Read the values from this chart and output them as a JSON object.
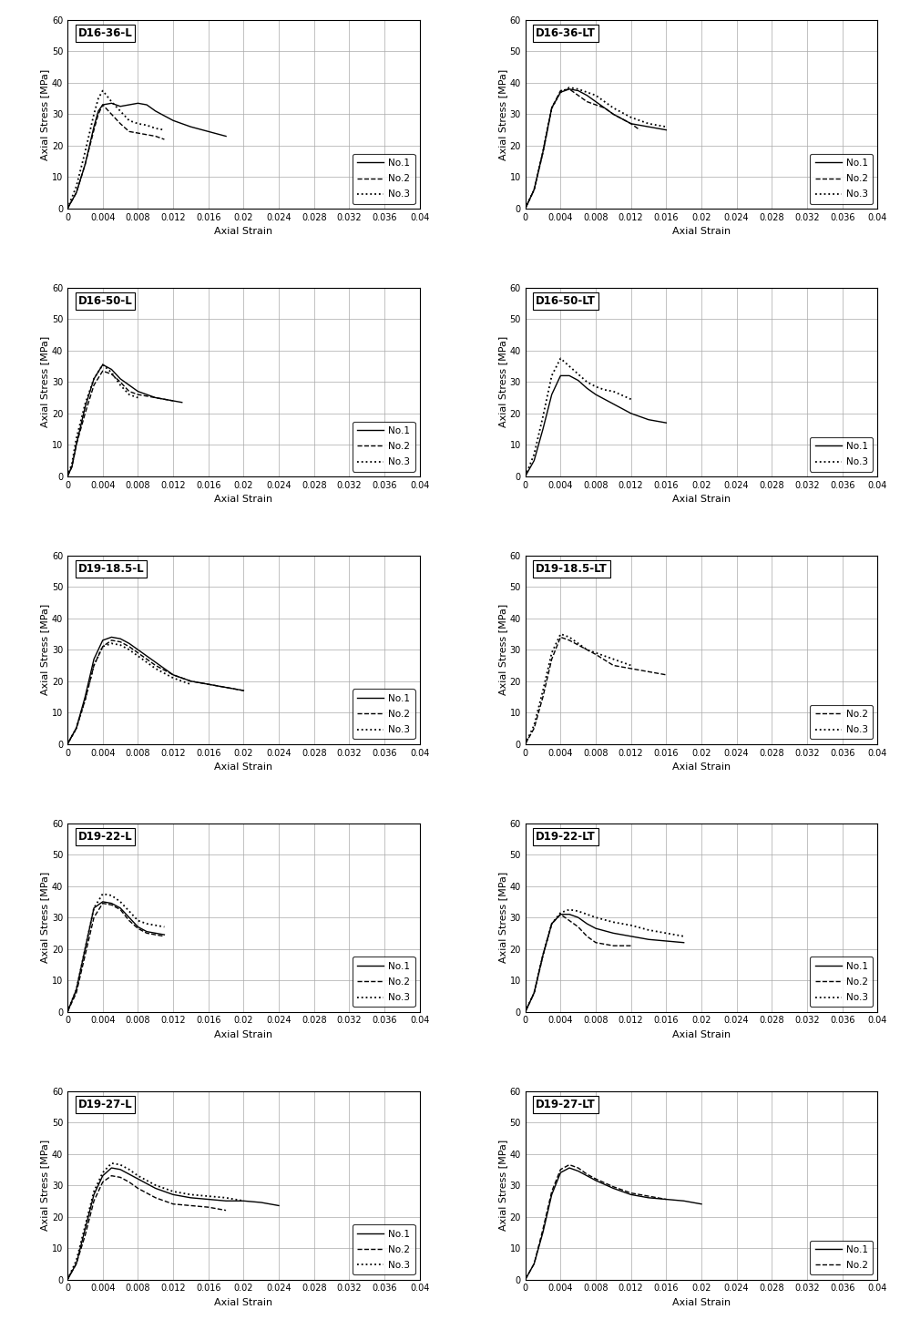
{
  "panels": [
    {
      "title": "D16-36-L",
      "series": [
        {
          "label": "No.1",
          "style": "solid",
          "x": [
            0,
            0.001,
            0.002,
            0.003,
            0.0035,
            0.004,
            0.005,
            0.006,
            0.007,
            0.008,
            0.009,
            0.01,
            0.012,
            0.014,
            0.016,
            0.018
          ],
          "y": [
            0,
            5,
            14,
            26,
            31,
            33,
            33.5,
            32.5,
            33,
            33.5,
            33,
            31,
            28,
            26,
            24.5,
            23
          ]
        },
        {
          "label": "No.2",
          "style": "dashed",
          "x": [
            0,
            0.001,
            0.002,
            0.003,
            0.0035,
            0.004,
            0.005,
            0.006,
            0.007,
            0.008,
            0.009,
            0.01,
            0.011
          ],
          "y": [
            0,
            5,
            14,
            25,
            30,
            33,
            30,
            27,
            24.5,
            24,
            23.5,
            23,
            22
          ]
        },
        {
          "label": "No.3",
          "style": "dotted",
          "x": [
            0,
            0.001,
            0.002,
            0.003,
            0.0035,
            0.004,
            0.005,
            0.006,
            0.007,
            0.008,
            0.009,
            0.01,
            0.011
          ],
          "y": [
            0,
            7,
            18,
            30,
            35,
            37.5,
            34,
            31,
            28,
            27,
            26.5,
            25.5,
            25
          ]
        }
      ],
      "legend_labels": [
        "No.1",
        "No.2",
        "No.3"
      ]
    },
    {
      "title": "D16-36-LT",
      "series": [
        {
          "label": "No.1",
          "style": "solid",
          "x": [
            0,
            0.001,
            0.002,
            0.003,
            0.004,
            0.005,
            0.006,
            0.007,
            0.008,
            0.009,
            0.01,
            0.012,
            0.014,
            0.016
          ],
          "y": [
            0,
            6,
            18,
            32,
            37,
            38,
            37.5,
            36,
            34,
            32,
            30,
            27,
            26,
            25
          ]
        },
        {
          "label": "No.2",
          "style": "dashed",
          "x": [
            0,
            0.001,
            0.002,
            0.003,
            0.004,
            0.005,
            0.006,
            0.007,
            0.008,
            0.009,
            0.01,
            0.012,
            0.013
          ],
          "y": [
            0,
            6,
            18,
            32,
            37.5,
            38,
            36,
            34,
            33,
            32,
            30,
            27,
            25
          ]
        },
        {
          "label": "No.3",
          "style": "dotted",
          "x": [
            0,
            0.001,
            0.002,
            0.003,
            0.004,
            0.005,
            0.006,
            0.007,
            0.008,
            0.009,
            0.01,
            0.012,
            0.014,
            0.016
          ],
          "y": [
            0,
            6,
            18,
            32,
            37,
            38.5,
            38,
            37,
            36,
            34,
            32,
            29,
            27,
            26
          ]
        }
      ],
      "legend_labels": [
        "No.1",
        "No.2",
        "No.3"
      ]
    },
    {
      "title": "D16-50-L",
      "series": [
        {
          "label": "No.1",
          "style": "solid",
          "x": [
            0,
            0.0005,
            0.001,
            0.002,
            0.003,
            0.004,
            0.005,
            0.006,
            0.007,
            0.008,
            0.01,
            0.012,
            0.013
          ],
          "y": [
            0,
            3,
            10,
            22,
            31,
            35.5,
            34,
            31,
            29,
            27,
            25,
            24,
            23.5
          ]
        },
        {
          "label": "No.2",
          "style": "dashed",
          "x": [
            0,
            0.0005,
            0.001,
            0.002,
            0.003,
            0.004,
            0.005,
            0.006,
            0.007,
            0.008,
            0.01,
            0.012
          ],
          "y": [
            0,
            3,
            10,
            20,
            29,
            33.5,
            32.5,
            30,
            27,
            26,
            25,
            24
          ]
        },
        {
          "label": "No.3",
          "style": "dotted",
          "x": [
            0,
            0.0005,
            0.001,
            0.002,
            0.003,
            0.004,
            0.005,
            0.006,
            0.007,
            0.008
          ],
          "y": [
            0,
            4,
            12,
            23,
            31,
            35.5,
            33,
            29,
            26,
            25
          ]
        }
      ],
      "legend_labels": [
        "No.1",
        "No.2",
        "No.3"
      ]
    },
    {
      "title": "D16-50-LT",
      "series": [
        {
          "label": "No.1",
          "style": "solid",
          "x": [
            0,
            0.001,
            0.002,
            0.003,
            0.004,
            0.005,
            0.006,
            0.007,
            0.008,
            0.01,
            0.012,
            0.014,
            0.016
          ],
          "y": [
            0,
            5,
            15,
            26,
            32,
            32,
            30.5,
            28,
            26,
            23,
            20,
            18,
            17
          ]
        },
        {
          "label": "No.3",
          "style": "dotted",
          "x": [
            0,
            0.001,
            0.002,
            0.003,
            0.004,
            0.005,
            0.006,
            0.007,
            0.008,
            0.009,
            0.01,
            0.012
          ],
          "y": [
            0,
            7,
            19,
            32,
            37.5,
            35,
            32.5,
            30,
            28.5,
            27.5,
            27,
            24.5
          ]
        }
      ],
      "legend_labels": [
        "No.1",
        "No.3"
      ]
    },
    {
      "title": "D19-18.5-L",
      "series": [
        {
          "label": "No.1",
          "style": "solid",
          "x": [
            0,
            0.001,
            0.002,
            0.003,
            0.004,
            0.005,
            0.006,
            0.007,
            0.008,
            0.01,
            0.012,
            0.014,
            0.016,
            0.018,
            0.02
          ],
          "y": [
            0,
            5,
            15,
            27,
            33,
            34,
            33.5,
            32,
            30,
            26,
            22,
            20,
            19,
            18,
            17
          ]
        },
        {
          "label": "No.2",
          "style": "dashed",
          "x": [
            0,
            0.001,
            0.002,
            0.003,
            0.004,
            0.005,
            0.006,
            0.007,
            0.008,
            0.01,
            0.012,
            0.014,
            0.016,
            0.018,
            0.02
          ],
          "y": [
            0,
            5,
            14,
            25,
            31,
            33,
            32.5,
            31,
            29,
            25,
            22,
            20,
            19,
            18,
            17
          ]
        },
        {
          "label": "No.3",
          "style": "dotted",
          "x": [
            0,
            0.001,
            0.002,
            0.003,
            0.004,
            0.005,
            0.006,
            0.007,
            0.008,
            0.01,
            0.012,
            0.014
          ],
          "y": [
            0,
            5,
            14,
            25,
            31,
            32,
            31.5,
            30,
            28,
            24,
            21,
            19
          ]
        }
      ],
      "legend_labels": [
        "No.1",
        "No.2",
        "No.3"
      ]
    },
    {
      "title": "D19-18.5-LT",
      "series": [
        {
          "label": "No.2",
          "style": "dashed",
          "x": [
            0,
            0.001,
            0.002,
            0.003,
            0.004,
            0.005,
            0.006,
            0.007,
            0.008,
            0.01,
            0.012,
            0.014,
            0.016
          ],
          "y": [
            0,
            5,
            15,
            27,
            34,
            33,
            31.5,
            30,
            28.5,
            25,
            24,
            23,
            22
          ]
        },
        {
          "label": "No.3",
          "style": "dotted",
          "x": [
            0,
            0.001,
            0.002,
            0.003,
            0.004,
            0.005,
            0.006,
            0.007,
            0.008,
            0.01,
            0.012
          ],
          "y": [
            0,
            6,
            17,
            29,
            35,
            34,
            32,
            30,
            29,
            27,
            25
          ]
        }
      ],
      "legend_labels": [
        "No.2",
        "No.3"
      ]
    },
    {
      "title": "D19-22-L",
      "series": [
        {
          "label": "No.1",
          "style": "solid",
          "x": [
            0,
            0.001,
            0.002,
            0.003,
            0.004,
            0.005,
            0.006,
            0.007,
            0.008,
            0.009,
            0.01,
            0.011
          ],
          "y": [
            0,
            7,
            20,
            33,
            35,
            34.5,
            33,
            30,
            27,
            25.5,
            25,
            24.5
          ]
        },
        {
          "label": "No.2",
          "style": "dashed",
          "x": [
            0,
            0.001,
            0.002,
            0.003,
            0.004,
            0.005,
            0.006,
            0.007,
            0.008,
            0.009,
            0.01,
            0.011
          ],
          "y": [
            0,
            6,
            18,
            30,
            34.5,
            34,
            32.5,
            29,
            26.5,
            25,
            24.5,
            24
          ]
        },
        {
          "label": "No.3",
          "style": "dotted",
          "x": [
            0,
            0.001,
            0.002,
            0.003,
            0.004,
            0.005,
            0.006,
            0.007,
            0.008,
            0.009,
            0.01,
            0.011
          ],
          "y": [
            0,
            7,
            20,
            33,
            37.5,
            37,
            35,
            32,
            29,
            28,
            27.5,
            27
          ]
        }
      ],
      "legend_labels": [
        "No.1",
        "No.2",
        "No.3"
      ]
    },
    {
      "title": "D19-22-LT",
      "series": [
        {
          "label": "No.1",
          "style": "solid",
          "x": [
            0,
            0.001,
            0.002,
            0.003,
            0.004,
            0.005,
            0.006,
            0.007,
            0.008,
            0.01,
            0.012,
            0.014,
            0.016,
            0.018
          ],
          "y": [
            0,
            6,
            18,
            28,
            31,
            31,
            30,
            28,
            26.5,
            25,
            24,
            23,
            22.5,
            22
          ]
        },
        {
          "label": "No.2",
          "style": "dashed",
          "x": [
            0,
            0.001,
            0.002,
            0.003,
            0.004,
            0.005,
            0.006,
            0.007,
            0.008,
            0.009,
            0.01,
            0.011,
            0.012
          ],
          "y": [
            0,
            6,
            18,
            28,
            31,
            29,
            27,
            24,
            22,
            21.5,
            21,
            21,
            21
          ]
        },
        {
          "label": "No.3",
          "style": "dotted",
          "x": [
            0,
            0.001,
            0.002,
            0.003,
            0.004,
            0.005,
            0.006,
            0.007,
            0.008,
            0.01,
            0.012,
            0.014,
            0.016,
            0.018
          ],
          "y": [
            0,
            6,
            18,
            28,
            31.5,
            32.5,
            32,
            31,
            30,
            28.5,
            27.5,
            26,
            25,
            24
          ]
        }
      ],
      "legend_labels": [
        "No.1",
        "No.2",
        "No.3"
      ]
    },
    {
      "title": "D19-27-L",
      "series": [
        {
          "label": "No.1",
          "style": "solid",
          "x": [
            0,
            0.001,
            0.002,
            0.003,
            0.004,
            0.005,
            0.006,
            0.007,
            0.008,
            0.01,
            0.012,
            0.014,
            0.016,
            0.018,
            0.02,
            0.022,
            0.024
          ],
          "y": [
            0,
            5,
            16,
            27,
            33,
            35.5,
            35,
            33.5,
            32,
            29,
            27,
            26,
            25.5,
            25,
            25,
            24.5,
            23.5
          ]
        },
        {
          "label": "No.2",
          "style": "dashed",
          "x": [
            0,
            0.001,
            0.002,
            0.003,
            0.004,
            0.005,
            0.006,
            0.007,
            0.008,
            0.01,
            0.012,
            0.014,
            0.016,
            0.018
          ],
          "y": [
            0,
            5,
            14,
            25,
            31,
            33,
            32.5,
            31,
            29,
            26,
            24,
            23.5,
            23,
            22
          ]
        },
        {
          "label": "No.3",
          "style": "dotted",
          "x": [
            0,
            0.001,
            0.002,
            0.003,
            0.004,
            0.005,
            0.006,
            0.007,
            0.008,
            0.01,
            0.012,
            0.014,
            0.016,
            0.018,
            0.02
          ],
          "y": [
            0,
            6,
            17,
            28,
            34,
            37,
            36.5,
            35,
            33,
            30,
            28,
            27,
            26.5,
            26,
            25
          ]
        }
      ],
      "legend_labels": [
        "No.1",
        "No.2",
        "No.3"
      ]
    },
    {
      "title": "D19-27-LT",
      "series": [
        {
          "label": "No.1",
          "style": "solid",
          "x": [
            0,
            0.001,
            0.002,
            0.003,
            0.004,
            0.005,
            0.006,
            0.007,
            0.008,
            0.01,
            0.012,
            0.014,
            0.016,
            0.018,
            0.02
          ],
          "y": [
            0,
            5,
            15,
            27,
            34,
            35.5,
            34.5,
            33,
            31.5,
            29,
            27,
            26,
            25.5,
            25,
            24
          ]
        },
        {
          "label": "No.2",
          "style": "dashed",
          "x": [
            0,
            0.001,
            0.002,
            0.003,
            0.004,
            0.005,
            0.006,
            0.007,
            0.008,
            0.01,
            0.012,
            0.014,
            0.016
          ],
          "y": [
            0,
            5,
            16,
            28,
            35,
            36.5,
            35.5,
            33.5,
            32,
            29.5,
            27.5,
            26.5,
            25.5
          ]
        }
      ],
      "legend_labels": [
        "No.1",
        "No.2"
      ]
    }
  ],
  "xlim": [
    0,
    0.04
  ],
  "ylim": [
    0,
    60
  ],
  "xticks": [
    0,
    0.004,
    0.008,
    0.012,
    0.016,
    0.02,
    0.024,
    0.028,
    0.032,
    0.036,
    0.04
  ],
  "yticks": [
    0,
    10,
    20,
    30,
    40,
    50,
    60
  ],
  "xlabel": "Axial Strain",
  "ylabel": "Axial Stress [MPa]",
  "line_color": "#000000",
  "background_color": "#ffffff",
  "grid_color": "#aaaaaa"
}
